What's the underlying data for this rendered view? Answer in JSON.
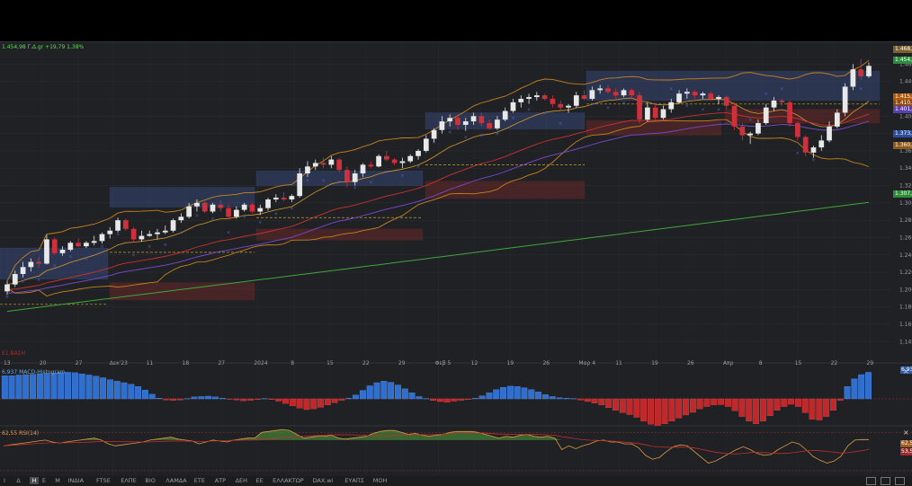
{
  "header": {
    "instrument_line": "1.454,98 Γ.Δ.gr +19,79 1,38%"
  },
  "panels": {
    "macd_label": "6,937 MACD-Histogram",
    "rsi_label": "62,55 RSI(14)",
    "rsi_value": "62,55",
    "rsi_value2": "53,55",
    "macd_value": "6,937",
    "marker": "Ε1.ΒΑΣΗ"
  },
  "price_tags": {
    "last": "1.454,98",
    "high": "1.468,2",
    "upper_a": "1.415,6",
    "upper_b": "1.410,5",
    "purple": "1.401,7",
    "blue": "1.373,84",
    "orange": "1.360,9",
    "green": "1.307,3"
  },
  "toolbar": {
    "items": [
      "Ι",
      "Δ",
      "Η",
      "Ε",
      "Μ",
      "ΙΝΔΙΑ",
      "FTSE",
      "ΕΛΠΕ",
      "ΒΙΟ",
      "ΛΑΜΔΑ",
      "ΕΤΕ",
      "ΑΤΡ",
      "ΔΕΗ",
      "ΕΕ",
      "ΕΛΛΑΚΤΩΡ",
      "DAX.wi",
      "ΕΥΑΠΣ",
      "ΜΟΗ"
    ]
  },
  "chart_data": {
    "type": "candlestick",
    "x_ticks": [
      "13",
      "20",
      "27",
      "Δεκ'23",
      "11",
      "18",
      "27",
      "2024",
      "8",
      "15",
      "22",
      "29",
      "Φεβ 5",
      "12",
      "19",
      "26",
      "Μαρ 4",
      "11",
      "19",
      "26",
      "Απρ",
      "8",
      "15",
      "22",
      "29"
    ],
    "y_ticks": [
      1140,
      1160,
      1180,
      1200,
      1220,
      1240,
      1260,
      1280,
      1300,
      1320,
      1340,
      1360,
      1380,
      1400,
      1420,
      1440,
      1460
    ],
    "y_tick_labels": [
      "1.140",
      "1.160",
      "1.180",
      "1.200",
      "1.220",
      "1.240",
      "1.260",
      "1.280",
      "1.300",
      "1.320",
      "1.340",
      "1.360",
      "1.380",
      "1.400",
      "1.420",
      "1.440",
      "1.460"
    ],
    "ylim": [
      1130,
      1478
    ],
    "candles": [
      [
        1198,
        1210,
        1194,
        1206
      ],
      [
        1206,
        1222,
        1203,
        1218
      ],
      [
        1218,
        1232,
        1214,
        1226
      ],
      [
        1226,
        1236,
        1221,
        1232
      ],
      [
        1232,
        1238,
        1225,
        1230
      ],
      [
        1230,
        1263,
        1229,
        1258
      ],
      [
        1258,
        1260,
        1240,
        1242
      ],
      [
        1242,
        1250,
        1239,
        1246
      ],
      [
        1246,
        1256,
        1244,
        1254
      ],
      [
        1254,
        1259,
        1249,
        1250
      ],
      [
        1250,
        1256,
        1248,
        1254
      ],
      [
        1254,
        1262,
        1251,
        1256
      ],
      [
        1256,
        1266,
        1253,
        1264
      ],
      [
        1264,
        1272,
        1259,
        1268
      ],
      [
        1268,
        1283,
        1266,
        1280
      ],
      [
        1280,
        1282,
        1268,
        1270
      ],
      [
        1270,
        1272,
        1254,
        1258
      ],
      [
        1258,
        1268,
        1255,
        1262
      ],
      [
        1262,
        1268,
        1261,
        1264
      ],
      [
        1264,
        1270,
        1258,
        1266
      ],
      [
        1266,
        1274,
        1264,
        1268
      ],
      [
        1268,
        1282,
        1266,
        1280
      ],
      [
        1280,
        1288,
        1277,
        1284
      ],
      [
        1284,
        1300,
        1282,
        1296
      ],
      [
        1296,
        1304,
        1290,
        1300
      ],
      [
        1300,
        1302,
        1288,
        1290
      ],
      [
        1290,
        1300,
        1288,
        1298
      ],
      [
        1298,
        1303,
        1290,
        1294
      ],
      [
        1294,
        1298,
        1281,
        1284
      ],
      [
        1284,
        1296,
        1282,
        1292
      ],
      [
        1292,
        1300,
        1290,
        1298
      ],
      [
        1298,
        1300,
        1288,
        1290
      ],
      [
        1290,
        1298,
        1286,
        1294
      ],
      [
        1294,
        1306,
        1291,
        1304
      ],
      [
        1304,
        1310,
        1301,
        1306
      ],
      [
        1306,
        1312,
        1302,
        1304
      ],
      [
        1304,
        1310,
        1301,
        1308
      ],
      [
        1308,
        1340,
        1306,
        1334
      ],
      [
        1334,
        1348,
        1330,
        1342
      ],
      [
        1342,
        1350,
        1338,
        1346
      ],
      [
        1346,
        1352,
        1340,
        1344
      ],
      [
        1344,
        1354,
        1340,
        1350
      ],
      [
        1350,
        1352,
        1336,
        1338
      ],
      [
        1338,
        1342,
        1318,
        1324
      ],
      [
        1324,
        1338,
        1320,
        1334
      ],
      [
        1334,
        1346,
        1330,
        1344
      ],
      [
        1344,
        1348,
        1340,
        1342
      ],
      [
        1342,
        1356,
        1341,
        1354
      ],
      [
        1354,
        1360,
        1348,
        1350
      ],
      [
        1350,
        1352,
        1343,
        1346
      ],
      [
        1346,
        1352,
        1340,
        1348
      ],
      [
        1348,
        1356,
        1346,
        1354
      ],
      [
        1354,
        1362,
        1350,
        1360
      ],
      [
        1360,
        1378,
        1358,
        1374
      ],
      [
        1374,
        1386,
        1370,
        1384
      ],
      [
        1384,
        1400,
        1380,
        1394
      ],
      [
        1394,
        1402,
        1388,
        1398
      ],
      [
        1398,
        1402,
        1384,
        1390
      ],
      [
        1390,
        1398,
        1383,
        1394
      ],
      [
        1394,
        1404,
        1390,
        1400
      ],
      [
        1400,
        1404,
        1388,
        1392
      ],
      [
        1392,
        1396,
        1384,
        1386
      ],
      [
        1386,
        1400,
        1384,
        1396
      ],
      [
        1396,
        1410,
        1394,
        1406
      ],
      [
        1406,
        1420,
        1404,
        1416
      ],
      [
        1416,
        1424,
        1410,
        1420
      ],
      [
        1420,
        1426,
        1414,
        1422
      ],
      [
        1422,
        1428,
        1418,
        1424
      ],
      [
        1424,
        1426,
        1418,
        1420
      ],
      [
        1420,
        1424,
        1410,
        1414
      ],
      [
        1414,
        1418,
        1406,
        1410
      ],
      [
        1410,
        1414,
        1404,
        1412
      ],
      [
        1412,
        1428,
        1410,
        1424
      ],
      [
        1424,
        1430,
        1418,
        1420
      ],
      [
        1420,
        1434,
        1418,
        1430
      ],
      [
        1430,
        1436,
        1426,
        1432
      ],
      [
        1432,
        1436,
        1426,
        1428
      ],
      [
        1428,
        1432,
        1420,
        1424
      ],
      [
        1424,
        1432,
        1422,
        1430
      ],
      [
        1430,
        1432,
        1420,
        1424
      ],
      [
        1424,
        1428,
        1392,
        1396
      ],
      [
        1396,
        1416,
        1394,
        1410
      ],
      [
        1410,
        1414,
        1396,
        1398
      ],
      [
        1398,
        1412,
        1396,
        1408
      ],
      [
        1408,
        1420,
        1404,
        1416
      ],
      [
        1416,
        1430,
        1414,
        1426
      ],
      [
        1426,
        1432,
        1420,
        1428
      ],
      [
        1428,
        1430,
        1420,
        1424
      ],
      [
        1424,
        1428,
        1420,
        1426
      ],
      [
        1426,
        1428,
        1418,
        1420
      ],
      [
        1420,
        1424,
        1414,
        1422
      ],
      [
        1422,
        1424,
        1408,
        1412
      ],
      [
        1412,
        1416,
        1384,
        1388
      ],
      [
        1388,
        1392,
        1372,
        1378
      ],
      [
        1378,
        1382,
        1368,
        1380
      ],
      [
        1380,
        1396,
        1378,
        1392
      ],
      [
        1392,
        1414,
        1390,
        1410
      ],
      [
        1410,
        1422,
        1406,
        1418
      ],
      [
        1418,
        1420,
        1412,
        1416
      ],
      [
        1416,
        1418,
        1388,
        1392
      ],
      [
        1392,
        1394,
        1372,
        1376
      ],
      [
        1376,
        1378,
        1354,
        1358
      ],
      [
        1358,
        1366,
        1352,
        1364
      ],
      [
        1364,
        1378,
        1360,
        1372
      ],
      [
        1372,
        1394,
        1370,
        1388
      ],
      [
        1388,
        1408,
        1386,
        1404
      ],
      [
        1404,
        1438,
        1400,
        1434
      ],
      [
        1434,
        1460,
        1430,
        1454
      ],
      [
        1454,
        1466,
        1442,
        1446
      ],
      [
        1446,
        1462,
        1444,
        1458
      ]
    ],
    "macd_histogram": [
      6,
      6,
      6.2,
      6.3,
      6.4,
      6.5,
      6.6,
      6.7,
      6.8,
      6.9,
      6.8,
      6.5,
      6.2,
      5.9,
      5.5,
      5,
      4.6,
      4.2,
      3.8,
      3.2,
      2.3,
      1.2,
      0.2,
      -0.3,
      -0.4,
      -0.3,
      0.1,
      0.5,
      0.6,
      0.7,
      0.5,
      0.2,
      -0.1,
      -0.3,
      -0.5,
      -0.4,
      -0.2,
      0.1,
      -0.2,
      -0.6,
      -1.2,
      -1.8,
      -2.4,
      -2.8,
      -2.6,
      -2.2,
      -1.6,
      -1,
      -0.4,
      0.2,
      1,
      2.2,
      3.4,
      4.2,
      4.6,
      4.3,
      3.6,
      2.6,
      1.6,
      0.6,
      0.1,
      -0.4,
      -0.7,
      -0.9,
      -0.6,
      -0.4,
      -0.2,
      0.2,
      0.8,
      1.6,
      2.4,
      3,
      3.3,
      3.2,
      2.9,
      2.4,
      1.8,
      1.1,
      0.6,
      0.3,
      0.2,
      0.1,
      -0.3,
      -0.7,
      -1.1,
      -1.6,
      -2.3,
      -3,
      -3.6,
      -4.1,
      -4.8,
      -5.8,
      -6.6,
      -6.9,
      -6.5,
      -5.8,
      -5,
      -4.2,
      -3.5,
      -2.6,
      -2,
      -1.6,
      -1.5,
      -2,
      -3.1,
      -4.6,
      -5.8,
      -6.5,
      -5.8,
      -4.4,
      -3,
      -2,
      -1.4,
      -2,
      -3.6,
      -5.3,
      -5.5,
      -4.6,
      -3,
      -0.4,
      3.2,
      5.2,
      6.3,
      6.9
    ],
    "rsi": [
      56,
      57,
      58,
      59,
      60,
      61,
      62,
      60,
      59,
      60,
      61,
      62,
      63,
      64,
      62,
      58,
      56,
      57,
      58,
      59,
      60,
      62,
      63,
      64,
      65,
      63,
      62,
      61,
      58,
      60,
      62,
      61,
      60,
      62,
      63,
      64,
      64,
      70,
      71,
      72,
      73,
      72,
      68,
      64,
      65,
      66,
      66,
      67,
      64,
      63,
      64,
      65,
      66,
      69,
      71,
      72,
      72,
      70,
      68,
      69,
      67,
      66,
      67,
      68,
      70,
      71,
      71,
      71,
      70,
      68,
      66,
      64,
      66,
      65,
      67,
      68,
      66,
      65,
      66,
      64,
      52,
      56,
      53,
      56,
      58,
      61,
      62,
      60,
      60,
      58,
      58,
      54,
      46,
      42,
      44,
      50,
      55,
      57,
      56,
      50,
      44,
      38,
      40,
      44,
      48,
      52,
      55,
      52,
      48,
      46,
      47,
      52,
      56,
      60,
      58,
      52,
      45,
      41,
      38,
      40,
      45,
      56,
      62,
      62.5,
      62.55
    ]
  }
}
